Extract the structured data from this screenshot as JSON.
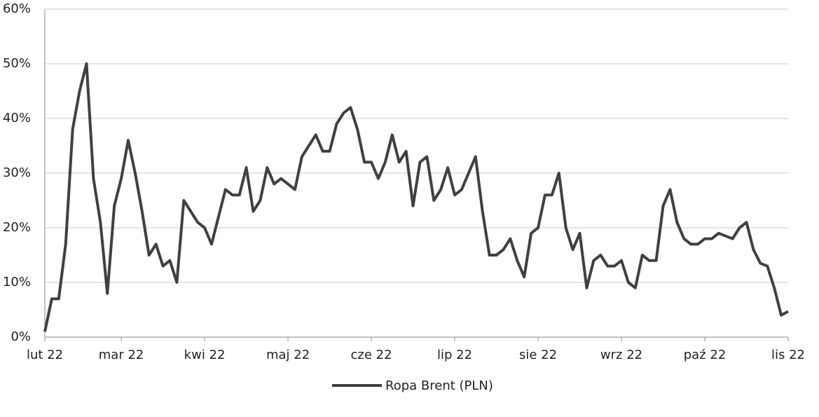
{
  "chart_data": {
    "type": "line",
    "categories": [
      "lut 22",
      null,
      null,
      null,
      null,
      null,
      null,
      null,
      null,
      null,
      null,
      "mar 22",
      null,
      null,
      null,
      null,
      null,
      null,
      null,
      null,
      null,
      null,
      null,
      "kwi 22",
      null,
      null,
      null,
      null,
      null,
      null,
      null,
      null,
      null,
      null,
      null,
      "maj 22",
      null,
      null,
      null,
      null,
      null,
      null,
      null,
      null,
      null,
      null,
      null,
      "cze 22",
      null,
      null,
      null,
      null,
      null,
      null,
      null,
      null,
      null,
      null,
      null,
      "lip 22",
      null,
      null,
      null,
      null,
      null,
      null,
      null,
      null,
      null,
      null,
      null,
      "sie 22",
      null,
      null,
      null,
      null,
      null,
      null,
      null,
      null,
      null,
      null,
      null,
      "wrz 22",
      null,
      null,
      null,
      null,
      null,
      null,
      null,
      null,
      null,
      null,
      null,
      "paź 22",
      null,
      null,
      null,
      null,
      null,
      null,
      null,
      null,
      null,
      null,
      null,
      "lis 22"
    ],
    "series": [
      {
        "name": "Ropa Brent (PLN)",
        "color": "#404040",
        "values": [
          1,
          7,
          7,
          17,
          38,
          45,
          50,
          29,
          21,
          8,
          24,
          29,
          36,
          30,
          23,
          15,
          17,
          13,
          14,
          10,
          25,
          23,
          21,
          20,
          17,
          22,
          27,
          26,
          26,
          31,
          23,
          25,
          31,
          28,
          29,
          28,
          27,
          33,
          35,
          37,
          34,
          34,
          39,
          41,
          42,
          38,
          32,
          32,
          29,
          32,
          37,
          32,
          34,
          24,
          32,
          33,
          25,
          27,
          31,
          26,
          27,
          30,
          33,
          23,
          15,
          15,
          16,
          18,
          14,
          11,
          19,
          20,
          26,
          26,
          30,
          20,
          16,
          19,
          9,
          14,
          15,
          13,
          13,
          14,
          10,
          9,
          15,
          14,
          14,
          24,
          27,
          21,
          18,
          17,
          17,
          18,
          18,
          19,
          18.5,
          18,
          20,
          21,
          16,
          13.5,
          13,
          9,
          4,
          4.7
        ]
      }
    ],
    "ylim": [
      0,
      60
    ],
    "yticks": [
      {
        "value": 0,
        "label": "0%"
      },
      {
        "value": 10,
        "label": "10%"
      },
      {
        "value": 20,
        "label": "20%"
      },
      {
        "value": 30,
        "label": "30%"
      },
      {
        "value": 40,
        "label": "40%"
      },
      {
        "value": 50,
        "label": "50%"
      },
      {
        "value": 60,
        "label": "60%"
      }
    ],
    "grid": true,
    "legend": "bottom"
  }
}
